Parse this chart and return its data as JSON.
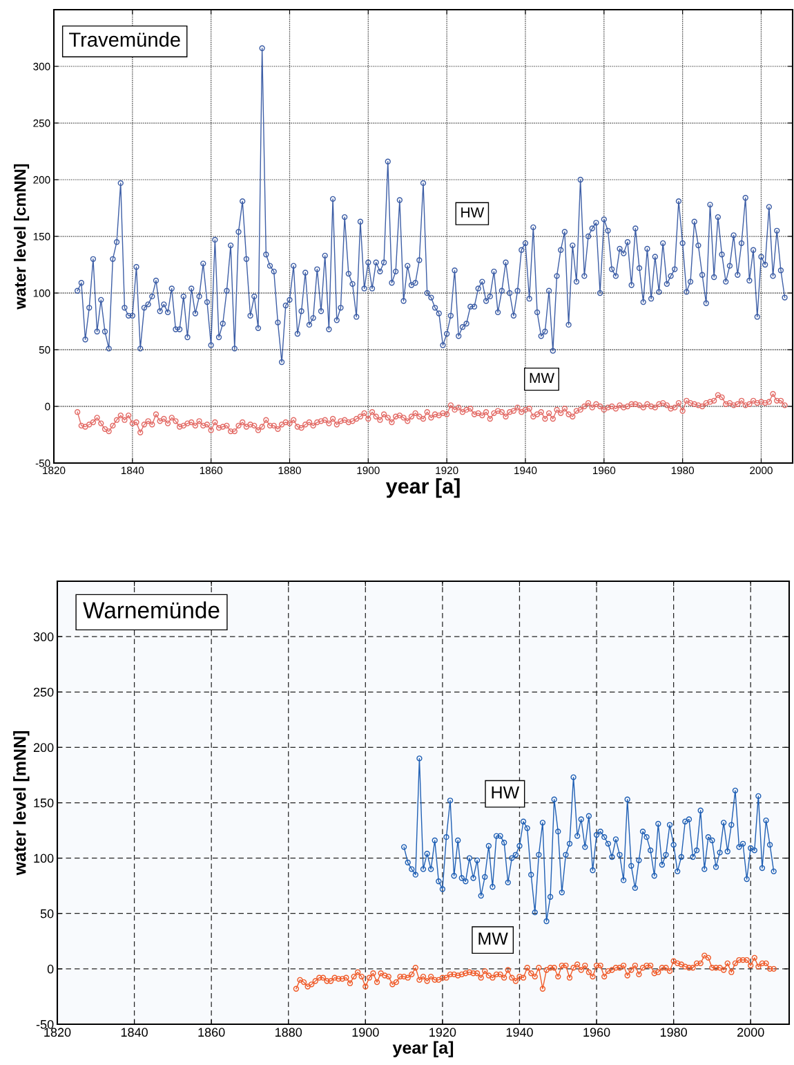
{
  "chart_data": [
    {
      "type": "line",
      "title": "Travemünde",
      "xlabel": "year [a]",
      "ylabel": "water level [cmNN]",
      "xlim": [
        1820,
        2008
      ],
      "ylim": [
        -50,
        350
      ],
      "xticks": [
        1820,
        1840,
        1860,
        1880,
        1900,
        1920,
        1940,
        1960,
        1980,
        2000
      ],
      "yticks": [
        -50,
        0,
        50,
        100,
        150,
        200,
        250,
        300
      ],
      "grid": true,
      "line_style": "solid",
      "marker": "circle",
      "legend": false,
      "series": [
        {
          "name": "HW",
          "color": "#3d5ea6",
          "x": [
            1826,
            1827,
            1828,
            1829,
            1830,
            1831,
            1832,
            1833,
            1834,
            1835,
            1836,
            1837,
            1838,
            1839,
            1840,
            1841,
            1842,
            1843,
            1844,
            1845,
            1846,
            1847,
            1848,
            1849,
            1850,
            1851,
            1852,
            1853,
            1854,
            1855,
            1856,
            1857,
            1858,
            1859,
            1860,
            1861,
            1862,
            1863,
            1864,
            1865,
            1866,
            1867,
            1868,
            1869,
            1870,
            1871,
            1872,
            1873,
            1874,
            1875,
            1876,
            1877,
            1878,
            1879,
            1880,
            1881,
            1882,
            1883,
            1884,
            1885,
            1886,
            1887,
            1888,
            1889,
            1890,
            1891,
            1892,
            1893,
            1894,
            1895,
            1896,
            1897,
            1898,
            1899,
            1900,
            1901,
            1902,
            1903,
            1904,
            1905,
            1906,
            1907,
            1908,
            1909,
            1910,
            1911,
            1912,
            1913,
            1914,
            1915,
            1916,
            1917,
            1918,
            1919,
            1920,
            1921,
            1922,
            1923,
            1924,
            1925,
            1926,
            1927,
            1928,
            1929,
            1930,
            1931,
            1932,
            1933,
            1934,
            1935,
            1936,
            1937,
            1938,
            1939,
            1940,
            1941,
            1942,
            1943,
            1944,
            1945,
            1946,
            1947,
            1948,
            1949,
            1950,
            1951,
            1952,
            1953,
            1954,
            1955,
            1956,
            1957,
            1958,
            1959,
            1960,
            1961,
            1962,
            1963,
            1964,
            1965,
            1966,
            1967,
            1968,
            1969,
            1970,
            1971,
            1972,
            1973,
            1974,
            1975,
            1976,
            1977,
            1978,
            1979,
            1980,
            1981,
            1982,
            1983,
            1984,
            1985,
            1986,
            1987,
            1988,
            1989,
            1990,
            1991,
            1992,
            1993,
            1994,
            1995,
            1996,
            1997,
            1998,
            1999,
            2000,
            2001,
            2002,
            2003,
            2004,
            2005,
            2006
          ],
          "values": [
            102,
            109,
            59,
            87,
            130,
            66,
            94,
            66,
            51,
            130,
            145,
            197,
            87,
            80,
            80,
            123,
            51,
            87,
            90,
            97,
            111,
            84,
            90,
            83,
            104,
            68,
            68,
            97,
            61,
            104,
            82,
            97,
            126,
            92,
            54,
            147,
            61,
            73,
            102,
            142,
            51,
            154,
            181,
            130,
            80,
            97,
            69,
            316,
            134,
            124,
            119,
            74,
            39,
            89,
            94,
            124,
            64,
            84,
            118,
            72,
            78,
            121,
            84,
            133,
            68,
            183,
            76,
            87,
            167,
            117,
            108,
            79,
            163,
            104,
            127,
            104,
            127,
            119,
            127,
            216,
            109,
            119,
            182,
            93,
            124,
            107,
            109,
            129,
            197,
            100,
            96,
            87,
            82,
            54,
            64,
            80,
            120,
            62,
            70,
            73,
            88,
            88,
            104,
            110,
            93,
            97,
            119,
            83,
            102,
            127,
            100,
            80,
            102,
            138,
            144,
            95,
            158,
            83,
            62,
            66,
            102,
            49,
            115,
            138,
            154,
            72,
            142,
            110,
            200,
            115,
            150,
            157,
            162,
            100,
            165,
            155,
            121,
            115,
            139,
            135,
            145,
            107,
            157,
            122,
            92,
            139,
            95,
            132,
            101,
            144,
            108,
            115,
            121,
            181,
            144,
            101,
            110,
            163,
            142,
            116,
            91,
            178,
            114,
            167,
            134,
            110,
            124,
            151,
            116,
            144,
            184,
            111,
            138,
            79,
            132,
            125,
            176,
            115,
            155,
            120,
            96
          ]
        },
        {
          "name": "MW",
          "color": "#e36b66",
          "x": [
            1826,
            1827,
            1828,
            1829,
            1830,
            1831,
            1832,
            1833,
            1834,
            1835,
            1836,
            1837,
            1838,
            1839,
            1840,
            1841,
            1842,
            1843,
            1844,
            1845,
            1846,
            1847,
            1848,
            1849,
            1850,
            1851,
            1852,
            1853,
            1854,
            1855,
            1856,
            1857,
            1858,
            1859,
            1860,
            1861,
            1862,
            1863,
            1864,
            1865,
            1866,
            1867,
            1868,
            1869,
            1870,
            1871,
            1872,
            1873,
            1874,
            1875,
            1876,
            1877,
            1878,
            1879,
            1880,
            1881,
            1882,
            1883,
            1884,
            1885,
            1886,
            1887,
            1888,
            1889,
            1890,
            1891,
            1892,
            1893,
            1894,
            1895,
            1896,
            1897,
            1898,
            1899,
            1900,
            1901,
            1902,
            1903,
            1904,
            1905,
            1906,
            1907,
            1908,
            1909,
            1910,
            1911,
            1912,
            1913,
            1914,
            1915,
            1916,
            1917,
            1918,
            1919,
            1920,
            1921,
            1922,
            1923,
            1924,
            1925,
            1926,
            1927,
            1928,
            1929,
            1930,
            1931,
            1932,
            1933,
            1934,
            1935,
            1936,
            1937,
            1938,
            1939,
            1940,
            1941,
            1942,
            1943,
            1944,
            1945,
            1946,
            1947,
            1948,
            1949,
            1950,
            1951,
            1952,
            1953,
            1954,
            1955,
            1956,
            1957,
            1958,
            1959,
            1960,
            1961,
            1962,
            1963,
            1964,
            1965,
            1966,
            1967,
            1968,
            1969,
            1970,
            1971,
            1972,
            1973,
            1974,
            1975,
            1976,
            1977,
            1978,
            1979,
            1980,
            1981,
            1982,
            1983,
            1984,
            1985,
            1986,
            1987,
            1988,
            1989,
            1990,
            1991,
            1992,
            1993,
            1994,
            1995,
            1996,
            1997,
            1998,
            1999,
            2000,
            2001,
            2002,
            2003,
            2004,
            2005,
            2006
          ],
          "values": [
            -5,
            -17,
            -18,
            -16,
            -14,
            -10,
            -15,
            -20,
            -22,
            -17,
            -12,
            -8,
            -12,
            -8,
            -15,
            -14,
            -23,
            -16,
            -13,
            -16,
            -7,
            -13,
            -11,
            -15,
            -10,
            -13,
            -18,
            -17,
            -15,
            -14,
            -17,
            -13,
            -17,
            -16,
            -21,
            -14,
            -19,
            -18,
            -17,
            -22,
            -22,
            -17,
            -14,
            -18,
            -16,
            -17,
            -21,
            -18,
            -12,
            -17,
            -17,
            -20,
            -16,
            -14,
            -15,
            -12,
            -18,
            -19,
            -16,
            -14,
            -17,
            -14,
            -13,
            -12,
            -15,
            -11,
            -16,
            -13,
            -12,
            -14,
            -13,
            -11,
            -9,
            -6,
            -11,
            -5,
            -9,
            -12,
            -7,
            -10,
            -14,
            -9,
            -8,
            -10,
            -13,
            -9,
            -6,
            -9,
            -11,
            -5,
            -10,
            -7,
            -8,
            -6,
            -7,
            1,
            -3,
            -1,
            -5,
            -3,
            -2,
            -7,
            -6,
            -8,
            -5,
            -11,
            -6,
            -4,
            -5,
            -9,
            -5,
            -4,
            -1,
            -5,
            -3,
            -2,
            -9,
            -7,
            -5,
            -11,
            -6,
            -11,
            -3,
            -6,
            -2,
            -7,
            -9,
            -4,
            -3,
            0,
            3,
            -1,
            2,
            0,
            -3,
            -1,
            0,
            -2,
            1,
            -1,
            0,
            2,
            2,
            1,
            -1,
            2,
            0,
            -1,
            2,
            3,
            1,
            -2,
            -1,
            3,
            -4,
            5,
            3,
            2,
            1,
            0,
            3,
            4,
            5,
            10,
            8,
            2,
            3,
            1,
            2,
            5,
            1,
            2,
            5,
            3,
            4,
            3,
            4,
            11,
            5,
            5,
            1
          ]
        }
      ]
    },
    {
      "type": "line",
      "title": "Warnemünde",
      "xlabel": "year [a]",
      "ylabel": "water level [mNN]",
      "xlim": [
        1820,
        2010
      ],
      "ylim": [
        -50,
        350
      ],
      "xticks": [
        1820,
        1840,
        1860,
        1880,
        1900,
        1920,
        1940,
        1960,
        1980,
        2000
      ],
      "yticks": [
        -50,
        0,
        50,
        100,
        150,
        200,
        250,
        300
      ],
      "grid": true,
      "line_style": "solid",
      "marker": "circle",
      "legend": false,
      "series": [
        {
          "name": "HW",
          "color": "#1f5fb4",
          "x": [
            1910,
            1911,
            1912,
            1913,
            1914,
            1915,
            1916,
            1917,
            1918,
            1919,
            1920,
            1921,
            1922,
            1923,
            1924,
            1925,
            1926,
            1927,
            1928,
            1929,
            1930,
            1931,
            1932,
            1933,
            1934,
            1935,
            1936,
            1937,
            1938,
            1939,
            1940,
            1941,
            1942,
            1943,
            1944,
            1945,
            1946,
            1947,
            1948,
            1949,
            1950,
            1951,
            1952,
            1953,
            1954,
            1955,
            1956,
            1957,
            1958,
            1959,
            1960,
            1961,
            1962,
            1963,
            1964,
            1965,
            1966,
            1967,
            1968,
            1969,
            1970,
            1971,
            1972,
            1973,
            1974,
            1975,
            1976,
            1977,
            1978,
            1979,
            1980,
            1981,
            1982,
            1983,
            1984,
            1985,
            1986,
            1987,
            1988,
            1989,
            1990,
            1991,
            1992,
            1993,
            1994,
            1995,
            1996,
            1997,
            1998,
            1999,
            2000,
            2001,
            2002,
            2003,
            2004,
            2005,
            2006
          ],
          "values": [
            110,
            96,
            90,
            85,
            190,
            90,
            104,
            90,
            116,
            79,
            72,
            119,
            152,
            84,
            116,
            82,
            79,
            100,
            82,
            98,
            66,
            83,
            111,
            74,
            120,
            120,
            114,
            78,
            100,
            103,
            111,
            133,
            127,
            85,
            51,
            103,
            132,
            43,
            65,
            153,
            124,
            69,
            103,
            113,
            173,
            120,
            135,
            110,
            138,
            89,
            121,
            124,
            119,
            113,
            101,
            117,
            103,
            80,
            153,
            93,
            73,
            98,
            124,
            119,
            107,
            84,
            131,
            94,
            103,
            130,
            112,
            88,
            101,
            133,
            135,
            101,
            107,
            143,
            90,
            119,
            116,
            92,
            105,
            132,
            106,
            130,
            161,
            110,
            113,
            81,
            109,
            107,
            156,
            91,
            134,
            112,
            88
          ]
        },
        {
          "name": "MW",
          "color": "#f05a28",
          "x": [
            1882,
            1883,
            1884,
            1885,
            1886,
            1887,
            1888,
            1889,
            1890,
            1891,
            1892,
            1893,
            1894,
            1895,
            1896,
            1897,
            1898,
            1899,
            1900,
            1901,
            1902,
            1903,
            1904,
            1905,
            1906,
            1907,
            1908,
            1909,
            1910,
            1911,
            1912,
            1913,
            1914,
            1915,
            1916,
            1917,
            1918,
            1919,
            1920,
            1921,
            1922,
            1923,
            1924,
            1925,
            1926,
            1927,
            1928,
            1929,
            1930,
            1931,
            1932,
            1933,
            1934,
            1935,
            1936,
            1937,
            1938,
            1939,
            1940,
            1941,
            1942,
            1943,
            1944,
            1945,
            1946,
            1947,
            1948,
            1949,
            1950,
            1951,
            1952,
            1953,
            1954,
            1955,
            1956,
            1957,
            1958,
            1959,
            1960,
            1961,
            1962,
            1963,
            1964,
            1965,
            1966,
            1967,
            1968,
            1969,
            1970,
            1971,
            1972,
            1973,
            1974,
            1975,
            1976,
            1977,
            1978,
            1979,
            1980,
            1981,
            1982,
            1983,
            1984,
            1985,
            1986,
            1987,
            1988,
            1989,
            1990,
            1991,
            1992,
            1993,
            1994,
            1995,
            1996,
            1997,
            1998,
            1999,
            2000,
            2001,
            2002,
            2003,
            2004,
            2005,
            2006
          ],
          "values": [
            -18,
            -10,
            -12,
            -16,
            -14,
            -11,
            -8,
            -8,
            -11,
            -11,
            -8,
            -9,
            -9,
            -8,
            -13,
            -7,
            -3,
            -7,
            -16,
            -8,
            -4,
            -12,
            -4,
            -6,
            -7,
            -14,
            -12,
            -7,
            -7,
            -8,
            -5,
            1,
            -10,
            -7,
            -11,
            -7,
            -10,
            -10,
            -8,
            -8,
            -5,
            -5,
            -6,
            -5,
            -4,
            -3,
            -4,
            -4,
            -8,
            -2,
            -6,
            -8,
            -5,
            -5,
            -8,
            -1,
            -8,
            -11,
            -7,
            -8,
            1,
            -4,
            -7,
            1,
            -18,
            -1,
            1,
            1,
            -7,
            3,
            3,
            -8,
            1,
            4,
            -1,
            3,
            -3,
            -7,
            3,
            3,
            -7,
            -2,
            -1,
            1,
            1,
            3,
            -6,
            -1,
            3,
            -5,
            1,
            3,
            3,
            -4,
            -3,
            1,
            1,
            -2,
            7,
            5,
            4,
            2,
            1,
            1,
            5,
            5,
            12,
            10,
            1,
            1,
            1,
            -1,
            5,
            -3,
            5,
            8,
            8,
            8,
            3,
            10,
            2,
            5,
            5,
            0,
            0
          ]
        }
      ]
    }
  ]
}
